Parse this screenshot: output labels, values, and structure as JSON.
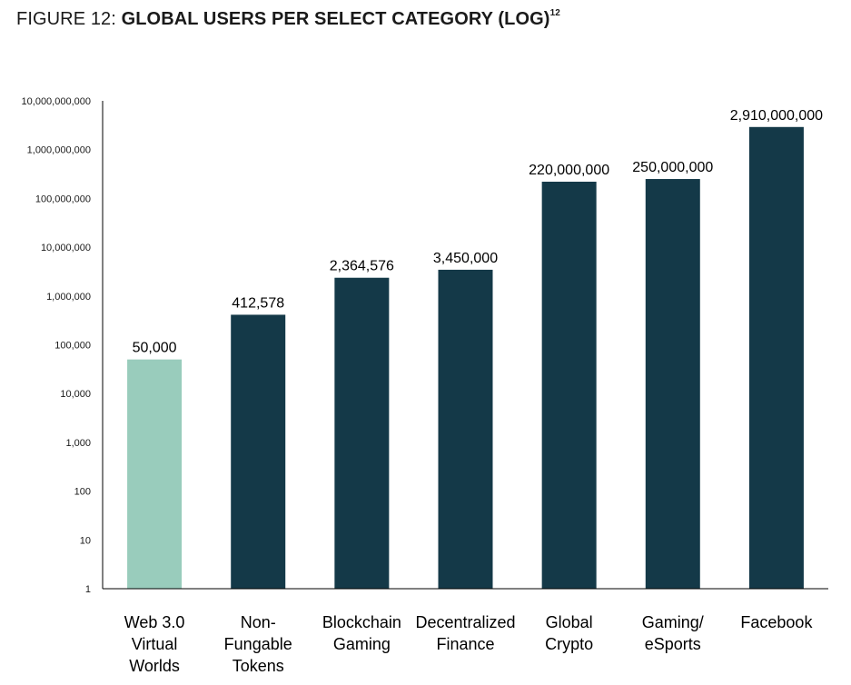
{
  "title": {
    "prefix": "FIGURE 12: ",
    "main": "GLOBAL USERS PER SELECT CATEGORY (LOG)",
    "footnote": "12"
  },
  "colors": {
    "highlight": "#99ccbc",
    "bar": "#143948",
    "axis": "#000000",
    "text": "#1a1a1a"
  },
  "chart_data": {
    "type": "bar",
    "scale": "log",
    "categories": [
      [
        "Web 3.0",
        "Virtual",
        "Worlds"
      ],
      [
        "Non-",
        "Fungable",
        "Tokens"
      ],
      [
        "Blockchain",
        "Gaming"
      ],
      [
        "Decentralized",
        "Finance"
      ],
      [
        "Global",
        "Crypto"
      ],
      [
        "Gaming/",
        "eSports"
      ],
      [
        "Facebook"
      ]
    ],
    "values": [
      50000,
      412578,
      2364576,
      3450000,
      220000000,
      250000000,
      2910000000
    ],
    "data_labels": [
      "50,000",
      "412,578",
      "2,364,576",
      "3,450,000",
      "220,000,000",
      "250,000,000",
      "2,910,000,000"
    ],
    "highlight_index": 0,
    "ylim": [
      1,
      10000000000
    ],
    "yticks": [
      1,
      10,
      100,
      1000,
      10000,
      100000,
      1000000,
      10000000,
      100000000,
      1000000000,
      10000000000
    ],
    "ytick_labels": [
      "1",
      "10",
      "100",
      "1,000",
      "10,000",
      "100,000",
      "1,000,000",
      "10,000,000",
      "100,000,000",
      "1,000,000,000",
      "10,000,000,000"
    ],
    "grid": false,
    "legend": "none"
  }
}
